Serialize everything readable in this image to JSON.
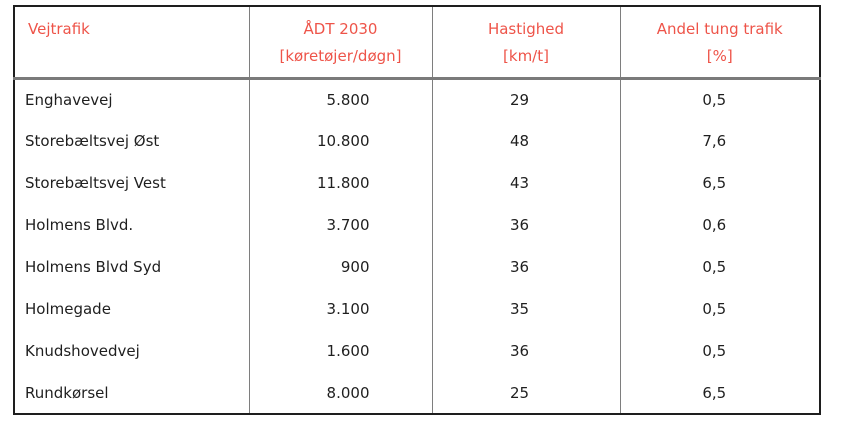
{
  "page": {
    "background_color": "#ffffff"
  },
  "table": {
    "colors": {
      "header_text": "#ee5449",
      "body_text": "#1f1f1f",
      "column_divider": "#7e7e7e",
      "header_rule": "#7a7a7a",
      "outer_border": "#1e1e1e"
    },
    "columns": [
      {
        "title": "Vejtrafik",
        "unit": ""
      },
      {
        "title": "ÅDT 2030",
        "unit": "[køretøjer/døgn]"
      },
      {
        "title": "Hastighed",
        "unit": "[km/t]"
      },
      {
        "title": "Andel tung trafik",
        "unit": "[%]"
      }
    ],
    "rows": [
      {
        "road": "Enghavevej",
        "adt": "5.800",
        "speed": "29",
        "heavy": "0,5"
      },
      {
        "road": "Storebæltsvej Øst",
        "adt": "10.800",
        "speed": "48",
        "heavy": "7,6"
      },
      {
        "road": "Storebæltsvej Vest",
        "adt": "11.800",
        "speed": "43",
        "heavy": "6,5"
      },
      {
        "road": "Holmens Blvd.",
        "adt": "3.700",
        "speed": "36",
        "heavy": "0,6"
      },
      {
        "road": "Holmens Blvd Syd",
        "adt": "900",
        "speed": "36",
        "heavy": "0,5"
      },
      {
        "road": "Holmegade",
        "adt": "3.100",
        "speed": "35",
        "heavy": "0,5"
      },
      {
        "road": "Knudshovedvej",
        "adt": "1.600",
        "speed": "36",
        "heavy": "0,5"
      },
      {
        "road": "Rundkørsel",
        "adt": "8.000",
        "speed": "25",
        "heavy": "6,5"
      }
    ]
  }
}
